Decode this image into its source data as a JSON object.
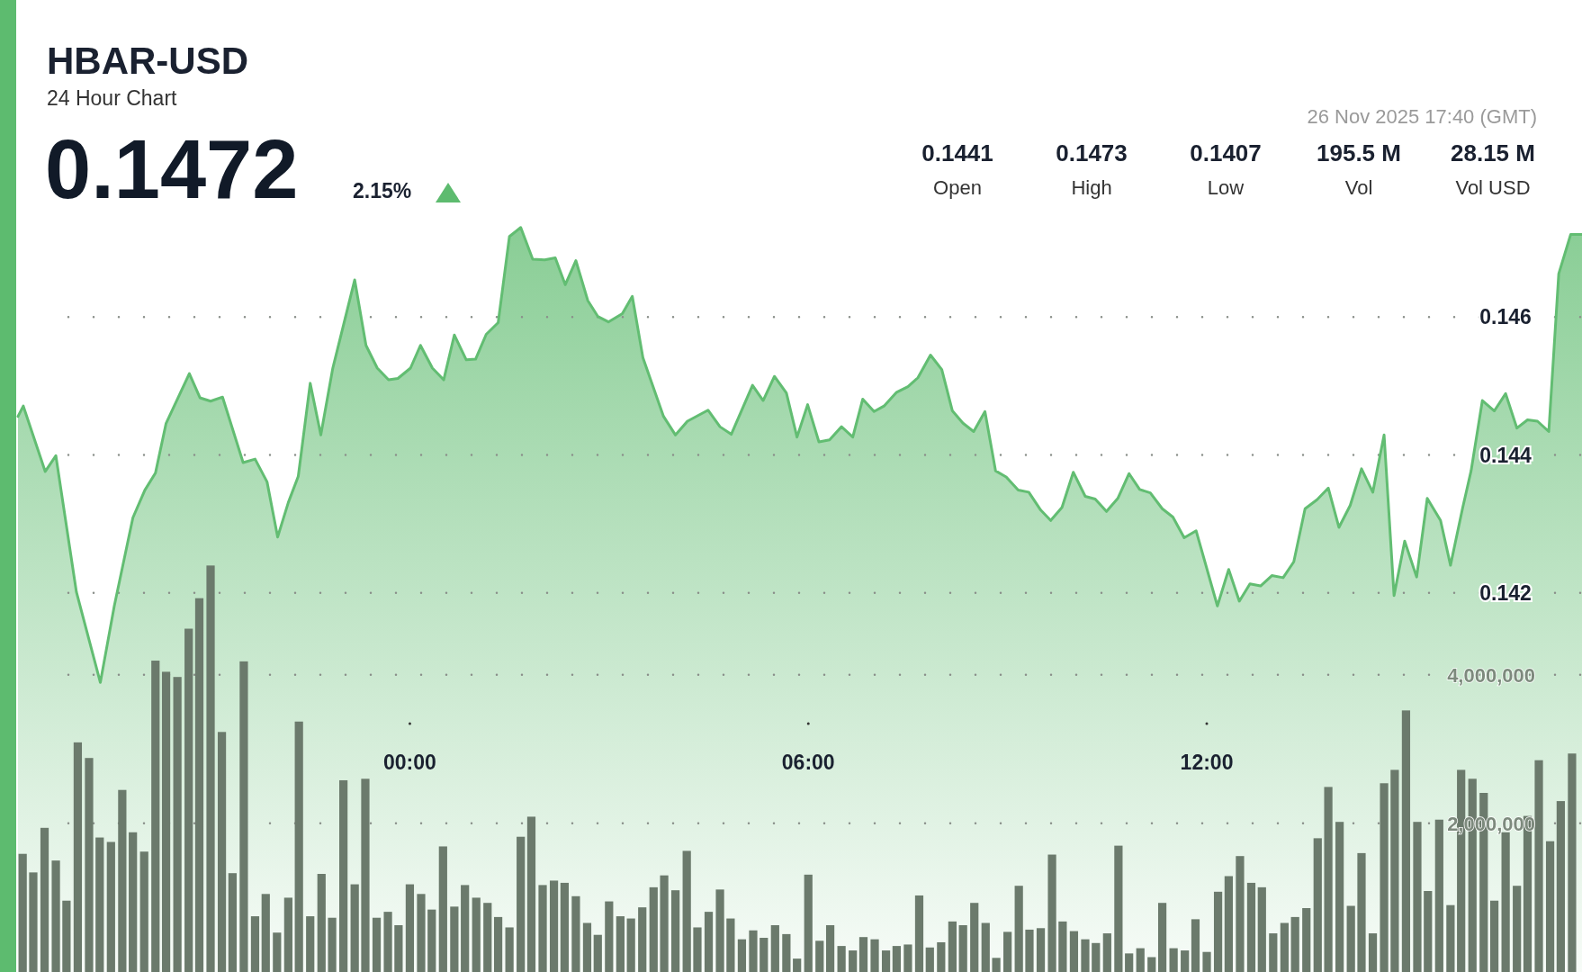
{
  "chart_data": {
    "type": "area",
    "title": "HBAR-USD",
    "subtitle": "24 Hour Chart",
    "annotations": [
      "0.1472",
      "2.15%",
      "26 Nov 2025 17:40 (GMT)",
      "0.1441",
      "Open",
      "0.1473",
      "High",
      "0.1407",
      "Low",
      "195.5 M",
      "Vol",
      "28.15 M",
      "Vol USD"
    ],
    "xlim": [
      -5.9,
      17.65
    ],
    "xticks": [
      {
        "value": 0,
        "label": "00:00"
      },
      {
        "value": 6,
        "label": "06:00"
      },
      {
        "value": 12,
        "label": "12:00"
      }
    ],
    "ylim": [
      0.1365,
      0.1506
    ],
    "yticks": [
      0.142,
      0.144,
      0.146
    ],
    "y2lim": [
      0,
      13080000
    ],
    "y2ticks": [
      {
        "value": 2000000,
        "label": "2,000,000"
      },
      {
        "value": 4000000,
        "label": "4,000,000"
      }
    ],
    "grid": true,
    "series": [
      {
        "color": "#62bd72",
        "x": [
          -5.9,
          -5.82,
          -5.49,
          -5.33,
          -5.02,
          -4.66,
          -4.45,
          -4.17,
          -3.99,
          -3.83,
          -3.67,
          -3.32,
          -3.16,
          -3.0,
          -2.82,
          -2.51,
          -2.33,
          -2.15,
          -1.99,
          -1.83,
          -1.68,
          -1.5,
          -1.34,
          -1.16,
          -0.83,
          -0.66,
          -0.49,
          -0.32,
          -0.18,
          0.01,
          0.16,
          0.34,
          0.51,
          0.67,
          0.85,
          0.99,
          1.15,
          1.33,
          1.5,
          1.67,
          1.85,
          2.03,
          2.19,
          2.34,
          2.5,
          2.68,
          2.83,
          2.99,
          3.2,
          3.35,
          3.51,
          3.82,
          4.0,
          4.18,
          4.49,
          4.67,
          4.84,
          5.16,
          5.32,
          5.49,
          5.67,
          5.83,
          5.99,
          6.16,
          6.32,
          6.5,
          6.67,
          6.82,
          6.99,
          7.14,
          7.33,
          7.5,
          7.65,
          7.84,
          8.01,
          8.17,
          8.33,
          8.49,
          8.66,
          8.82,
          8.98,
          9.16,
          9.32,
          9.5,
          9.65,
          9.82,
          9.99,
          10.17,
          10.32,
          10.49,
          10.66,
          10.83,
          10.99,
          11.15,
          11.33,
          11.49,
          11.66,
          11.84,
          12.16,
          12.33,
          12.49,
          12.65,
          12.81,
          12.98,
          13.15,
          13.31,
          13.48,
          13.66,
          13.83,
          13.99,
          14.16,
          14.33,
          14.5,
          14.67,
          14.82,
          14.98,
          15.16,
          15.32,
          15.52,
          15.67,
          15.85,
          15.98,
          16.15,
          16.33,
          16.5,
          16.67,
          16.83,
          16.98,
          17.15,
          17.3,
          17.48,
          17.65
        ],
        "values": [
          0.14456,
          0.14471,
          0.14376,
          0.14399,
          0.14201,
          0.1407,
          0.14181,
          0.14309,
          0.14349,
          0.14374,
          0.14446,
          0.14518,
          0.14483,
          0.14478,
          0.14484,
          0.14389,
          0.14394,
          0.14361,
          0.14281,
          0.14331,
          0.14369,
          0.14504,
          0.14429,
          0.14526,
          0.14654,
          0.14559,
          0.14526,
          0.14509,
          0.14511,
          0.14526,
          0.14559,
          0.14526,
          0.14509,
          0.14574,
          0.14538,
          0.14539,
          0.14575,
          0.14592,
          0.14717,
          0.1473,
          0.14684,
          0.14683,
          0.14686,
          0.14647,
          0.14682,
          0.14624,
          0.14601,
          0.14593,
          0.14605,
          0.1463,
          0.14541,
          0.14456,
          0.14429,
          0.14449,
          0.14465,
          0.14441,
          0.1443,
          0.14501,
          0.14479,
          0.14514,
          0.1449,
          0.14426,
          0.14473,
          0.14419,
          0.14422,
          0.14441,
          0.14426,
          0.14481,
          0.14463,
          0.14471,
          0.14491,
          0.14499,
          0.14512,
          0.14545,
          0.14524,
          0.14464,
          0.14446,
          0.14434,
          0.14463,
          0.14377,
          0.14368,
          0.14349,
          0.14346,
          0.1432,
          0.14305,
          0.14324,
          0.14375,
          0.1434,
          0.14336,
          0.14318,
          0.14337,
          0.14373,
          0.1435,
          0.14345,
          0.14322,
          0.1431,
          0.1428,
          0.1429,
          0.14181,
          0.14234,
          0.14188,
          0.14213,
          0.1421,
          0.14225,
          0.14222,
          0.14245,
          0.14322,
          0.14335,
          0.14352,
          0.14295,
          0.14327,
          0.1438,
          0.14346,
          0.14429,
          0.14196,
          0.14275,
          0.14223,
          0.14337,
          0.14305,
          0.1424,
          0.14322,
          0.14377,
          0.14479,
          0.14464,
          0.14489,
          0.14439,
          0.14451,
          0.14449,
          0.14434,
          0.14663,
          0.1472,
          0.1472
        ]
      },
      {
        "type": "bar",
        "axis": "y2",
        "color": "#6b7a6c",
        "x": [
          -5.83,
          -5.67,
          -5.5,
          -5.33,
          -5.17,
          -5,
          -4.83,
          -4.67,
          -4.5,
          -4.33,
          -4.17,
          -4,
          -3.83,
          -3.67,
          -3.5,
          -3.33,
          -3.17,
          -3,
          -2.83,
          -2.67,
          -2.5,
          -2.33,
          -2.17,
          -2,
          -1.83,
          -1.67,
          -1.5,
          -1.33,
          -1.17,
          -1,
          -0.83,
          -0.67,
          -0.5,
          -0.33,
          -0.17,
          0,
          0.17,
          0.33,
          0.5,
          0.67,
          0.83,
          1,
          1.17,
          1.33,
          1.5,
          1.67,
          1.83,
          2,
          2.17,
          2.33,
          2.5,
          2.67,
          2.83,
          3,
          3.17,
          3.33,
          3.5,
          3.67,
          3.83,
          4,
          4.17,
          4.33,
          4.5,
          4.67,
          4.83,
          5,
          5.17,
          5.33,
          5.5,
          5.67,
          5.83,
          6,
          6.17,
          6.33,
          6.5,
          6.67,
          6.83,
          7,
          7.17,
          7.33,
          7.5,
          7.67,
          7.83,
          8,
          8.17,
          8.33,
          8.5,
          8.67,
          8.83,
          9,
          9.17,
          9.33,
          9.5,
          9.67,
          9.83,
          10,
          10.17,
          10.33,
          10.5,
          10.67,
          10.83,
          11,
          11.17,
          11.33,
          11.5,
          11.67,
          11.83,
          12,
          12.17,
          12.33,
          12.5,
          12.67,
          12.83,
          13,
          13.17,
          13.33,
          13.5,
          13.67,
          13.83,
          14,
          14.17,
          14.33,
          14.5,
          14.67,
          14.83,
          15,
          15.17,
          15.33,
          15.5,
          15.67,
          15.83,
          16,
          16.17,
          16.33,
          16.5,
          16.67,
          16.83,
          17,
          17.17,
          17.33,
          17.5
        ],
        "values": [
          1590000,
          1340000,
          1940000,
          1500000,
          960000,
          3090000,
          2880000,
          1810000,
          1750000,
          2450000,
          1880000,
          1620000,
          4190000,
          4040000,
          3970000,
          4620000,
          5030000,
          5470000,
          3230000,
          1330000,
          4180000,
          750000,
          1050000,
          530000,
          1000000,
          3370000,
          750000,
          1320000,
          730000,
          2580000,
          1180000,
          2600000,
          730000,
          810000,
          630000,
          1180000,
          1050000,
          840000,
          1690000,
          880000,
          1170000,
          1000000,
          930000,
          740000,
          600000,
          1820000,
          2090000,
          1170000,
          1230000,
          1200000,
          1020000,
          660000,
          500000,
          950000,
          750000,
          720000,
          870000,
          1140000,
          1300000,
          1100000,
          1630000,
          600000,
          810000,
          1110000,
          720000,
          440000,
          560000,
          460000,
          630000,
          510000,
          180000,
          1310000,
          420000,
          630000,
          350000,
          290000,
          470000,
          440000,
          290000,
          350000,
          370000,
          1030000,
          330000,
          400000,
          680000,
          630000,
          930000,
          660000,
          190000,
          540000,
          1160000,
          570000,
          590000,
          1580000,
          680000,
          550000,
          440000,
          390000,
          520000,
          1700000,
          250000,
          320000,
          200000,
          930000,
          320000,
          290000,
          710000,
          270000,
          1080000,
          1290000,
          1560000,
          1200000,
          1140000,
          520000,
          660000,
          740000,
          860000,
          1800000,
          2490000,
          2020000,
          890000,
          1600000,
          520000,
          2540000,
          2720000,
          3520000,
          2020000,
          1090000,
          2050000,
          900000,
          2720000,
          2600000,
          2410000,
          960000,
          1880000,
          1160000,
          2100000,
          2850000,
          1760000,
          2300000,
          2940000
        ]
      }
    ]
  }
}
